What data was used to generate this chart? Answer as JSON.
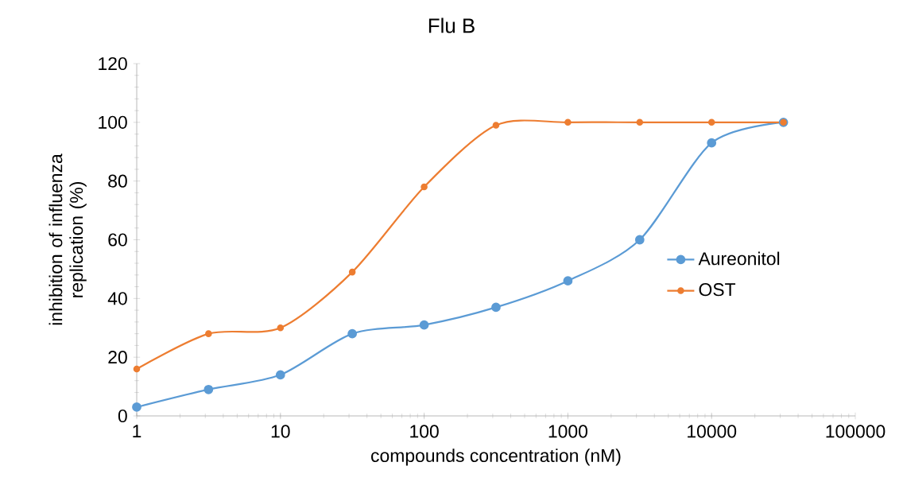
{
  "chart_data": {
    "type": "line",
    "title": "Flu B",
    "xlabel": "compounds concentration (nM)",
    "ylabel": "inhibition of influenza replication (%)",
    "x": [
      1,
      3.16,
      10,
      31.6,
      100,
      316,
      1000,
      3162,
      10000,
      31623
    ],
    "series": [
      {
        "name": "Aureonitol",
        "color": "#5b9bd5",
        "values": [
          3,
          9,
          14,
          28,
          31,
          37,
          46,
          60,
          93,
          100
        ]
      },
      {
        "name": "OST",
        "color": "#ed7d31",
        "values": [
          16,
          28,
          30,
          49,
          78,
          99,
          100,
          100,
          100,
          100
        ]
      }
    ],
    "log": "x",
    "xlim": [
      1,
      100000
    ],
    "xticks": [
      1,
      10,
      100,
      1000,
      10000,
      100000
    ],
    "ylim": [
      0,
      120
    ],
    "yticks": [
      0,
      20,
      40,
      60,
      80,
      100,
      120
    ],
    "grid": false,
    "legend": "right",
    "marker": "circle",
    "line_style": "solid"
  }
}
